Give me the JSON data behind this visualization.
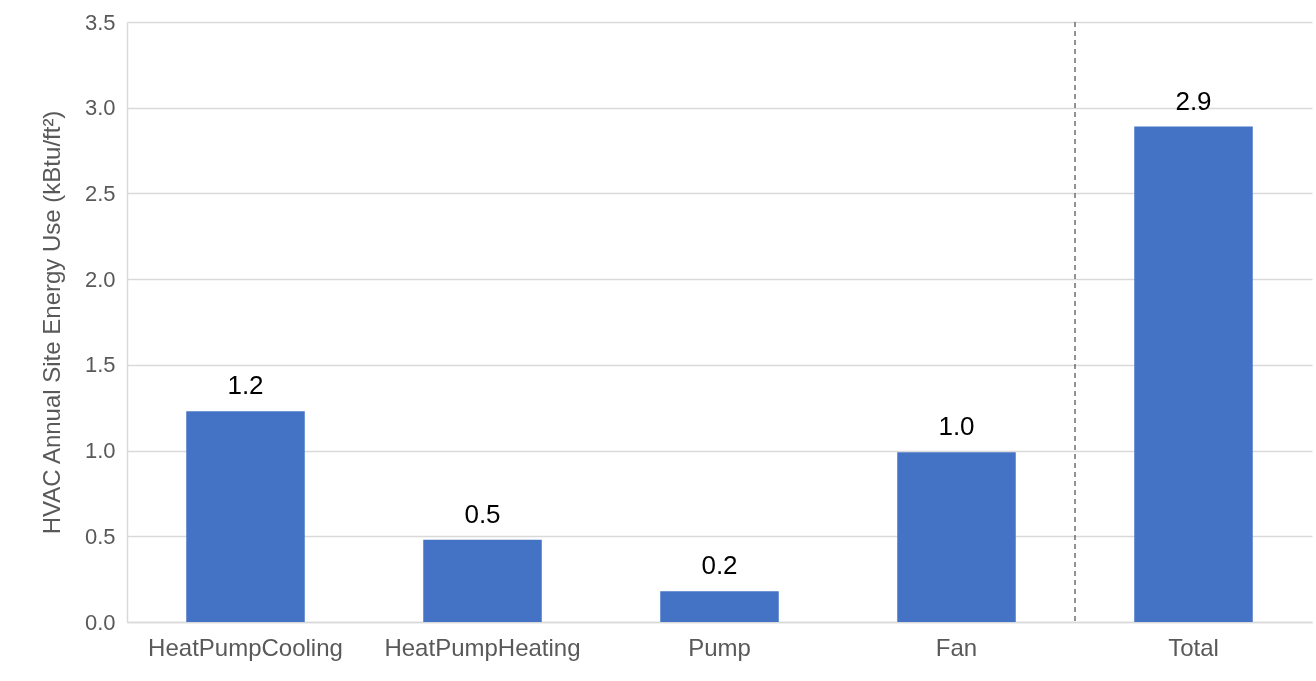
{
  "chart_data": {
    "type": "bar",
    "ylabel": "HVAC Annual Site Energy Use (kBtu/ft²)",
    "categories": [
      "HeatPumpCooling",
      "HeatPumpHeating",
      "Pump",
      "Fan",
      "Total"
    ],
    "values": [
      1.23,
      0.48,
      0.18,
      0.99,
      2.89
    ],
    "value_labels": [
      "1.2",
      "0.5",
      "0.2",
      "1.0",
      "2.9"
    ],
    "color": "#4472c4",
    "ylim": [
      0,
      3.5
    ],
    "yticks": [
      {
        "value": 0,
        "label": "0.0"
      },
      0.5,
      {
        "value": 1,
        "label": "1.0"
      },
      1.5,
      {
        "value": 2,
        "label": "2.0"
      },
      2.5,
      {
        "value": 3,
        "label": "3.0"
      },
      3.5
    ],
    "grid": "y",
    "ref_lines": [
      {
        "axis": "x",
        "value": "Total",
        "line_style": "dashed",
        "color": "#595959"
      }
    ]
  }
}
